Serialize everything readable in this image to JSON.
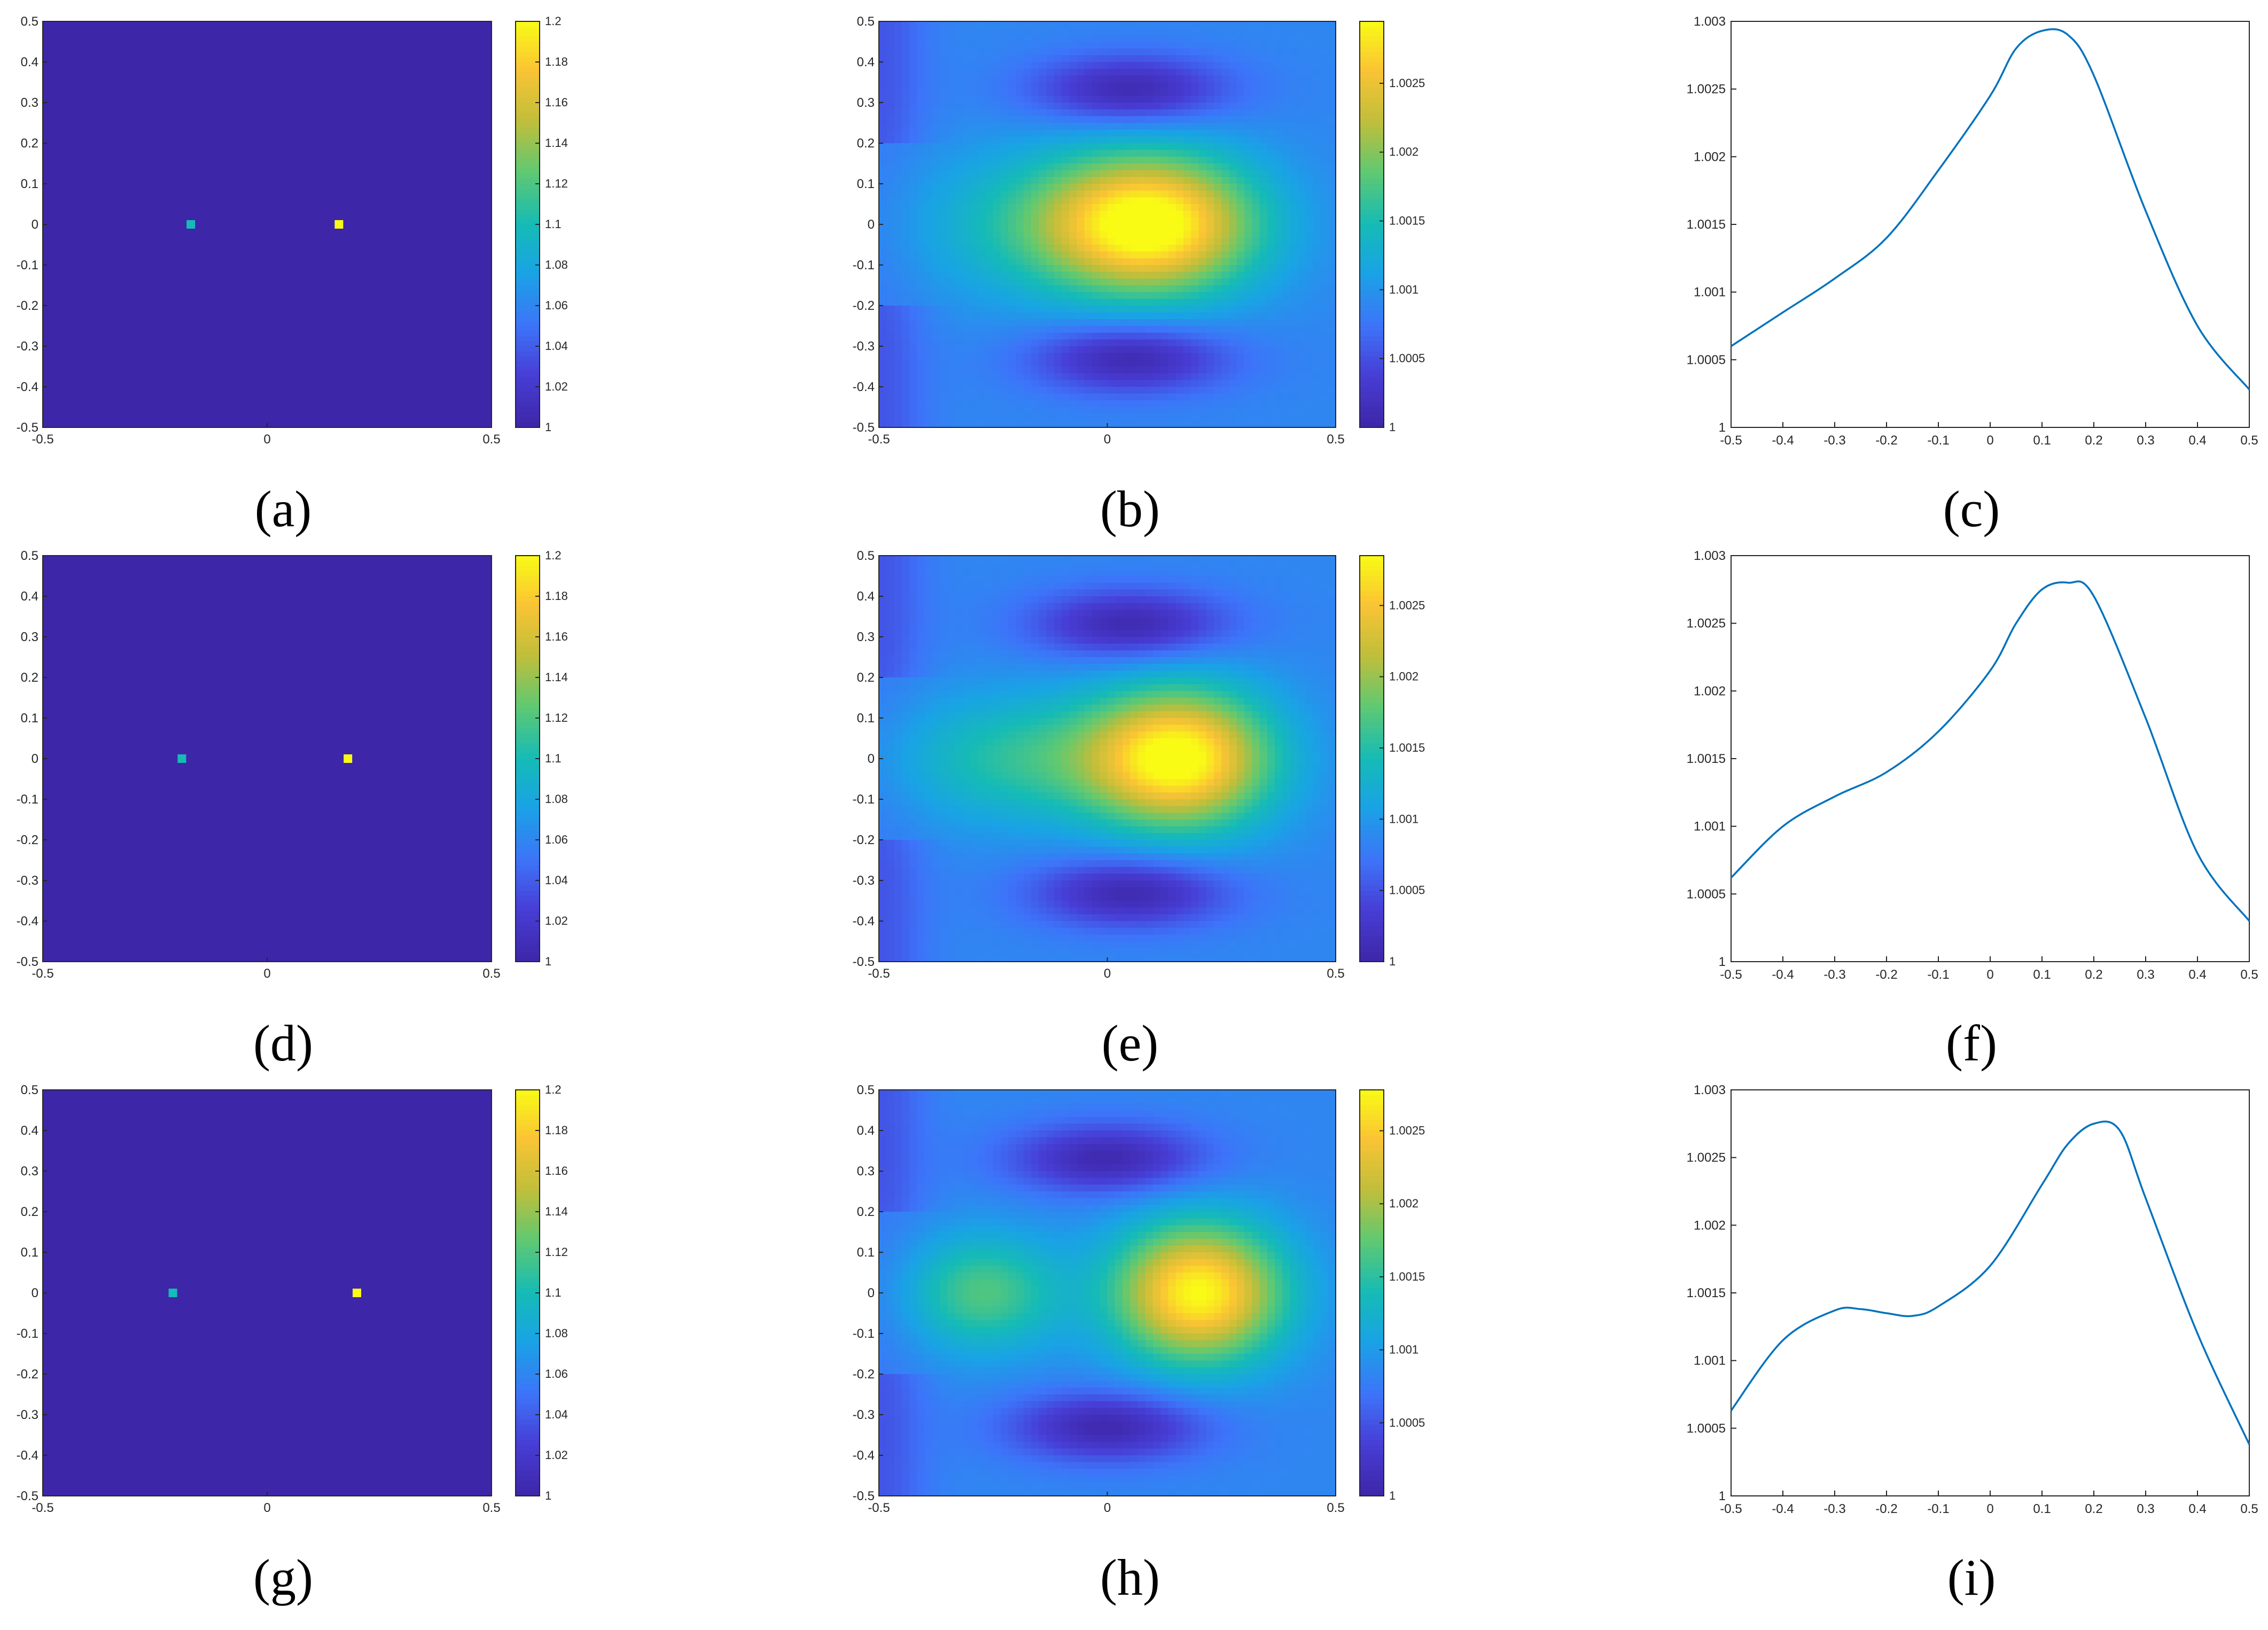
{
  "figure": {
    "captions": [
      "(a)",
      "(b)",
      "(c)",
      "(d)",
      "(e)",
      "(f)",
      "(g)",
      "(h)",
      "(i)"
    ]
  },
  "colors": {
    "background_field": "#3e26a8",
    "point_low": "#1bb0c9",
    "point_high": "#f9e81b",
    "line": "#0072bd",
    "axis": "#262626"
  },
  "chart_data": [
    {
      "id": "a",
      "type": "heatmap",
      "colormap": "parula",
      "xlim": [
        -0.5,
        0.5
      ],
      "ylim": [
        -0.5,
        0.5
      ],
      "x_ticks": [
        "-0.5",
        "0",
        "0.5"
      ],
      "y_ticks": [
        "0.5",
        "0.4",
        "0.3",
        "0.2",
        "0.1",
        "0",
        "-0.1",
        "-0.2",
        "-0.3",
        "-0.4",
        "-0.5"
      ],
      "colorbar": {
        "range": [
          1,
          1.2
        ],
        "ticks": [
          "1.2",
          "1.18",
          "1.16",
          "1.14",
          "1.12",
          "1.1",
          "1.08",
          "1.06",
          "1.04",
          "1.02",
          "1"
        ]
      },
      "background": 1.0,
      "points": [
        {
          "x": -0.17,
          "y": 0,
          "value": 1.1
        },
        {
          "x": 0.16,
          "y": 0,
          "value": 1.2
        }
      ]
    },
    {
      "id": "b",
      "type": "heatmap",
      "colormap": "parula",
      "xlim": [
        -0.5,
        0.5
      ],
      "ylim": [
        -0.5,
        0.5
      ],
      "x_ticks": [
        "-0.5",
        "0",
        "0.5"
      ],
      "y_ticks": [
        "0.5",
        "0.4",
        "0.3",
        "0.2",
        "0.1",
        "0",
        "-0.1",
        "-0.2",
        "-0.3",
        "-0.4",
        "-0.5"
      ],
      "colorbar": {
        "range": [
          1,
          1.00295
        ],
        "ticks": [
          "1.0025",
          "1.002",
          "1.0015",
          "1.001",
          "1.0005",
          "1"
        ]
      },
      "field_summary": {
        "peak": {
          "x": 0.1,
          "y": 0,
          "value": 1.0029
        },
        "low_lobes": [
          {
            "x": 0.05,
            "y": 0.32
          },
          {
            "x": 0.05,
            "y": -0.32
          }
        ]
      }
    },
    {
      "id": "c",
      "type": "line",
      "xlim": [
        -0.5,
        0.5
      ],
      "ylim": [
        1,
        1.003
      ],
      "x_ticks": [
        "-0.5",
        "-0.4",
        "-0.3",
        "-0.2",
        "-0.1",
        "0",
        "0.1",
        "0.2",
        "0.3",
        "0.4",
        "0.5"
      ],
      "y_ticks": [
        "1.003",
        "1.0025",
        "1.002",
        "1.0015",
        "1.001",
        "1.0005",
        "1"
      ],
      "x": [
        -0.5,
        -0.4,
        -0.3,
        -0.2,
        -0.1,
        0,
        0.05,
        0.1,
        0.15,
        0.2,
        0.3,
        0.4,
        0.5
      ],
      "y": [
        1.0006,
        1.00085,
        1.0011,
        1.0014,
        1.0019,
        1.00245,
        1.0028,
        1.00293,
        1.0029,
        1.0026,
        1.0016,
        1.00075,
        1.00028
      ]
    },
    {
      "id": "d",
      "type": "heatmap",
      "colormap": "parula",
      "xlim": [
        -0.5,
        0.5
      ],
      "ylim": [
        -0.5,
        0.5
      ],
      "x_ticks": [
        "-0.5",
        "0",
        "0.5"
      ],
      "y_ticks": [
        "0.5",
        "0.4",
        "0.3",
        "0.2",
        "0.1",
        "0",
        "-0.1",
        "-0.2",
        "-0.3",
        "-0.4",
        "-0.5"
      ],
      "colorbar": {
        "range": [
          1,
          1.2
        ],
        "ticks": [
          "1.2",
          "1.18",
          "1.16",
          "1.14",
          "1.12",
          "1.1",
          "1.08",
          "1.06",
          "1.04",
          "1.02",
          "1"
        ]
      },
      "background": 1.0,
      "points": [
        {
          "x": -0.19,
          "y": 0,
          "value": 1.1
        },
        {
          "x": 0.18,
          "y": 0,
          "value": 1.2
        }
      ]
    },
    {
      "id": "e",
      "type": "heatmap",
      "colormap": "parula",
      "xlim": [
        -0.5,
        0.5
      ],
      "ylim": [
        -0.5,
        0.5
      ],
      "x_ticks": [
        "-0.5",
        "0",
        "0.5"
      ],
      "y_ticks": [
        "0.5",
        "0.4",
        "0.3",
        "0.2",
        "0.1",
        "0",
        "-0.1",
        "-0.2",
        "-0.3",
        "-0.4",
        "-0.5"
      ],
      "colorbar": {
        "range": [
          1,
          1.00285
        ],
        "ticks": [
          "1.0025",
          "1.002",
          "1.0015",
          "1.001",
          "1.0005",
          "1"
        ]
      },
      "field_summary": {
        "peak": {
          "x": 0.15,
          "y": 0,
          "value": 1.0028
        },
        "low_lobes": [
          {
            "x": 0.05,
            "y": 0.32
          },
          {
            "x": 0.05,
            "y": -0.32
          }
        ]
      }
    },
    {
      "id": "f",
      "type": "line",
      "xlim": [
        -0.5,
        0.5
      ],
      "ylim": [
        1,
        1.003
      ],
      "x_ticks": [
        "-0.5",
        "-0.4",
        "-0.3",
        "-0.2",
        "-0.1",
        "0",
        "0.1",
        "0.2",
        "0.3",
        "0.4",
        "0.5"
      ],
      "y_ticks": [
        "1.003",
        "1.0025",
        "1.002",
        "1.0015",
        "1.001",
        "1.0005",
        "1"
      ],
      "x": [
        -0.5,
        -0.4,
        -0.3,
        -0.2,
        -0.1,
        0,
        0.05,
        0.1,
        0.15,
        0.2,
        0.3,
        0.4,
        0.5
      ],
      "y": [
        1.00062,
        1.001,
        1.00122,
        1.0014,
        1.0017,
        1.00215,
        1.0025,
        1.00275,
        1.0028,
        1.0027,
        1.0018,
        1.0008,
        1.0003
      ]
    },
    {
      "id": "g",
      "type": "heatmap",
      "colormap": "parula",
      "xlim": [
        -0.5,
        0.5
      ],
      "ylim": [
        -0.5,
        0.5
      ],
      "x_ticks": [
        "-0.5",
        "0",
        "0.5"
      ],
      "y_ticks": [
        "0.5",
        "0.4",
        "0.3",
        "0.2",
        "0.1",
        "0",
        "-0.1",
        "-0.2",
        "-0.3",
        "-0.4",
        "-0.5"
      ],
      "colorbar": {
        "range": [
          1,
          1.2
        ],
        "ticks": [
          "1.2",
          "1.18",
          "1.16",
          "1.14",
          "1.12",
          "1.1",
          "1.08",
          "1.06",
          "1.04",
          "1.02",
          "1"
        ]
      },
      "background": 1.0,
      "points": [
        {
          "x": -0.21,
          "y": 0,
          "value": 1.1
        },
        {
          "x": 0.2,
          "y": 0,
          "value": 1.2
        }
      ]
    },
    {
      "id": "h",
      "type": "heatmap",
      "colormap": "parula",
      "xlim": [
        -0.5,
        0.5
      ],
      "ylim": [
        -0.5,
        0.5
      ],
      "x_ticks": [
        "-0.5",
        "0",
        "0.5"
      ],
      "y_ticks": [
        "0.5",
        "0.4",
        "0.3",
        "0.2",
        "0.1",
        "0",
        "-0.1",
        "-0.2",
        "-0.3",
        "-0.4",
        "-0.5"
      ],
      "colorbar": {
        "range": [
          1,
          1.00278
        ],
        "ticks": [
          "1.0025",
          "1.002",
          "1.0015",
          "1.001",
          "1.0005",
          "1"
        ]
      },
      "field_summary": {
        "peak": {
          "x": 0.19,
          "y": 0,
          "value": 1.00275
        },
        "secondary": {
          "x": -0.28,
          "y": 0,
          "value": 1.0014
        },
        "low_lobes": [
          {
            "x": 0.0,
            "y": 0.32
          },
          {
            "x": 0.0,
            "y": -0.32
          }
        ]
      }
    },
    {
      "id": "i",
      "type": "line",
      "xlim": [
        -0.5,
        0.5
      ],
      "ylim": [
        1,
        1.003
      ],
      "x_ticks": [
        "-0.5",
        "-0.4",
        "-0.3",
        "-0.2",
        "-0.1",
        "0",
        "0.1",
        "0.2",
        "0.3",
        "0.4",
        "0.5"
      ],
      "y_ticks": [
        "1.003",
        "1.0025",
        "1.002",
        "1.0015",
        "1.001",
        "1.0005",
        "1"
      ],
      "x": [
        -0.5,
        -0.4,
        -0.3,
        -0.25,
        -0.2,
        -0.15,
        -0.1,
        0,
        0.1,
        0.15,
        0.2,
        0.25,
        0.3,
        0.4,
        0.5
      ],
      "y": [
        1.00063,
        1.00115,
        1.00137,
        1.00138,
        1.00135,
        1.00133,
        1.0014,
        1.0017,
        1.0023,
        1.0026,
        1.00275,
        1.0027,
        1.0022,
        1.0012,
        1.00038
      ]
    }
  ]
}
